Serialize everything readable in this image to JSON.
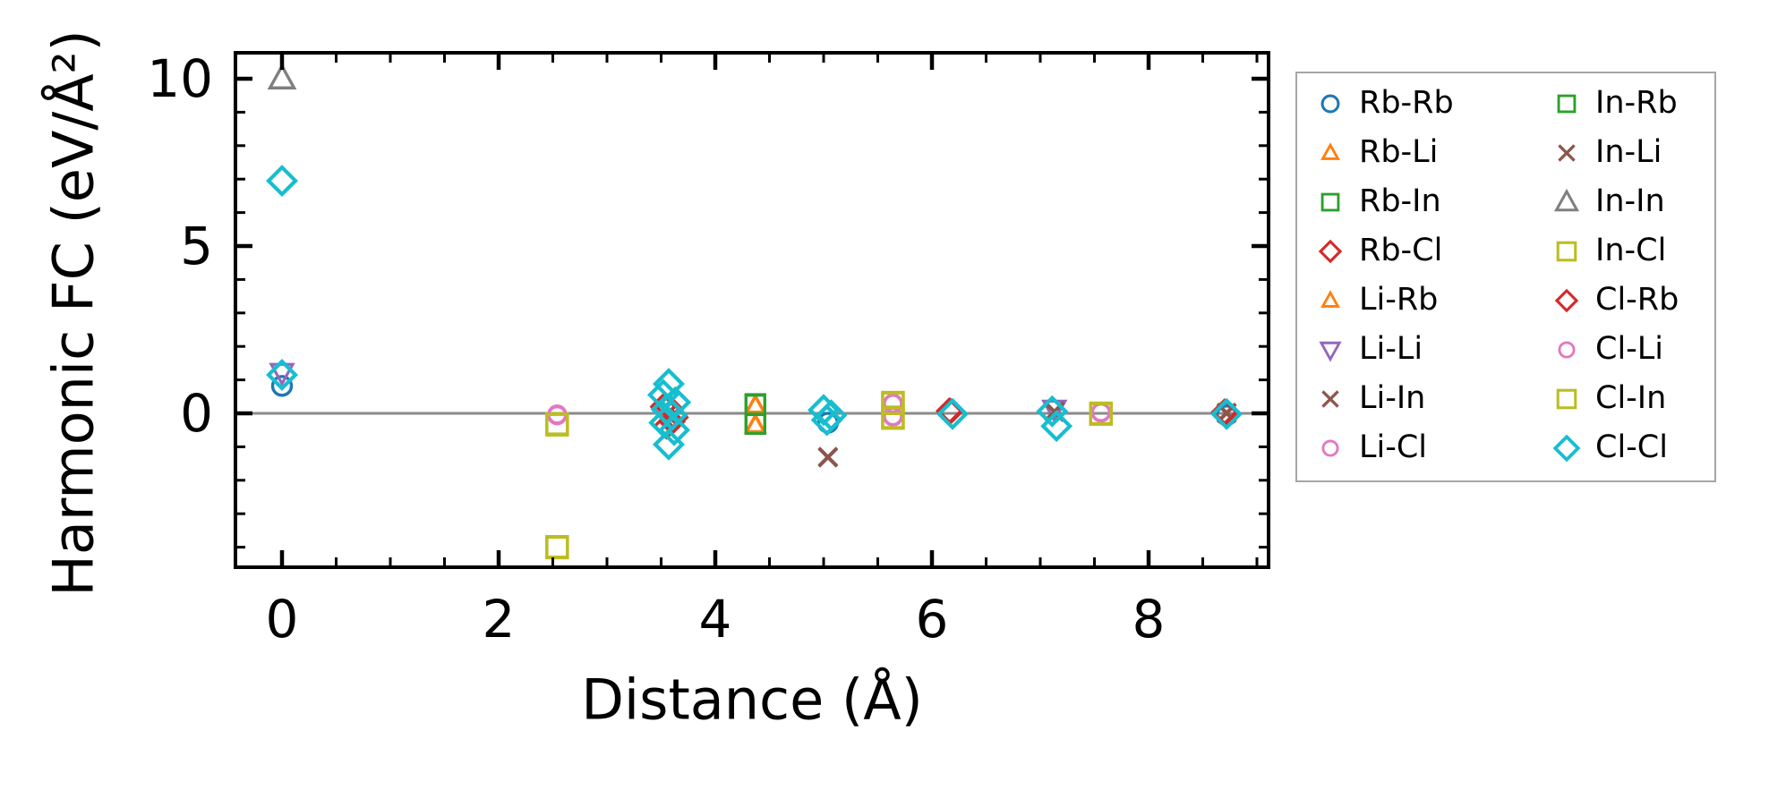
{
  "chart_data": {
    "type": "scatter",
    "title": "",
    "xlabel": "Distance (Å)",
    "ylabel": "Harmonic FC (eV/Å²)",
    "xlim": [
      -0.43,
      9.11
    ],
    "ylim": [
      -4.6,
      10.78
    ],
    "x_ticks": {
      "major": [
        0,
        2,
        4,
        6,
        8
      ],
      "labels": [
        "0",
        "2",
        "4",
        "6",
        "8"
      ],
      "minor_step": 0.5
    },
    "y_ticks": {
      "major": [
        0,
        5,
        10
      ],
      "labels": [
        "0",
        "5",
        "10"
      ],
      "minor_step": 1
    },
    "grid": false,
    "zero_line_y": 0,
    "tick_style": {
      "direction": "in",
      "sides": [
        "top",
        "bottom",
        "left",
        "right"
      ]
    },
    "legend": {
      "columns": 2,
      "location": "outside-right-top",
      "border_color": "#a6a6a6"
    },
    "colors": {
      "background": "#ffffff",
      "spine": "#000000",
      "text": "#000000",
      "zero_line": "#8a8a8a"
    },
    "series": [
      {
        "name": "Rb-Rb",
        "marker": "circle",
        "color": "#1f77b4",
        "size": 21,
        "lw": 3.4,
        "points": [
          [
            0,
            0.82
          ],
          [
            5.04,
            -0.28
          ],
          [
            8.72,
            -0.06
          ]
        ]
      },
      {
        "name": "Rb-Li",
        "marker": "triangle-up",
        "color": "#ff7f0e",
        "size": 20,
        "lw": 3.2,
        "points": [
          [
            4.37,
            0.24
          ],
          [
            4.37,
            -0.34
          ]
        ]
      },
      {
        "name": "Rb-In",
        "marker": "square",
        "color": "#2ca02c",
        "size": 21,
        "lw": 3.2,
        "points": [
          [
            4.37,
            0.28
          ],
          [
            4.37,
            -0.3
          ]
        ]
      },
      {
        "name": "Rb-Cl",
        "marker": "diamond",
        "color": "#d62728",
        "size": 26,
        "lw": 3.4,
        "points": [
          [
            3.52,
            0.2
          ],
          [
            3.63,
            -0.12
          ],
          [
            3.55,
            -0.38
          ],
          [
            6.16,
            0.07
          ],
          [
            8.7,
            0.04
          ]
        ]
      },
      {
        "name": "Li-Rb",
        "marker": "triangle-up",
        "color": "#ff7f0e",
        "size": 20,
        "lw": 3.2,
        "points": [
          [
            4.37,
            0.22
          ],
          [
            4.37,
            -0.36
          ]
        ]
      },
      {
        "name": "Li-Li",
        "marker": "triangle-down",
        "color": "#9467bd",
        "size": 24,
        "lw": 3.2,
        "points": [
          [
            0,
            1.22
          ],
          [
            7.13,
            0.12
          ]
        ]
      },
      {
        "name": "Li-In",
        "marker": "x",
        "color": "#8c564b",
        "size": 24,
        "lw": 3.6,
        "points": [
          [
            5.04,
            -1.3
          ],
          [
            7.13,
            0.04
          ],
          [
            8.72,
            0.0
          ]
        ]
      },
      {
        "name": "Li-Cl",
        "marker": "circle",
        "color": "#e377c2",
        "size": 19,
        "lw": 3.2,
        "points": [
          [
            2.54,
            -0.03
          ],
          [
            5.64,
            0.3
          ],
          [
            5.64,
            -0.1
          ],
          [
            7.56,
            0.02
          ]
        ]
      },
      {
        "name": "In-Rb",
        "marker": "square",
        "color": "#2ca02c",
        "size": 21,
        "lw": 3.2,
        "points": [
          [
            4.37,
            0.26
          ],
          [
            4.37,
            -0.32
          ]
        ]
      },
      {
        "name": "In-Li",
        "marker": "x",
        "color": "#8c564b",
        "size": 24,
        "lw": 3.6,
        "points": [
          [
            5.04,
            -1.32
          ],
          [
            7.13,
            0.06
          ],
          [
            8.72,
            0.02
          ]
        ]
      },
      {
        "name": "In-In",
        "marker": "triangle-up",
        "color": "#7f7f7f",
        "size": 27,
        "lw": 3.4,
        "points": [
          [
            0,
            10.0
          ]
        ]
      },
      {
        "name": "In-Cl",
        "marker": "square",
        "color": "#bcbd22",
        "size": 23,
        "lw": 3.4,
        "points": [
          [
            2.54,
            -0.31
          ],
          [
            2.54,
            -3.99
          ],
          [
            5.64,
            0.32
          ],
          [
            5.64,
            -0.12
          ],
          [
            7.56,
            0.0
          ]
        ]
      },
      {
        "name": "Cl-Rb",
        "marker": "diamond",
        "color": "#d62728",
        "size": 26,
        "lw": 3.4,
        "points": [
          [
            3.57,
            0.18
          ],
          [
            3.6,
            -0.25
          ],
          [
            6.17,
            0.06
          ],
          [
            8.71,
            0.02
          ]
        ]
      },
      {
        "name": "Cl-Li",
        "marker": "circle",
        "color": "#e377c2",
        "size": 19,
        "lw": 3.2,
        "points": [
          [
            2.54,
            -0.06
          ],
          [
            5.64,
            0.28
          ],
          [
            5.64,
            -0.08
          ],
          [
            7.56,
            0.04
          ]
        ]
      },
      {
        "name": "Cl-In",
        "marker": "square",
        "color": "#bcbd22",
        "size": 23,
        "lw": 3.4,
        "points": [
          [
            2.54,
            -0.34
          ],
          [
            2.54,
            -4.01
          ],
          [
            5.64,
            0.3
          ],
          [
            5.64,
            -0.14
          ],
          [
            7.56,
            -0.02
          ]
        ]
      },
      {
        "name": "Cl-Cl",
        "marker": "diamond",
        "color": "#17becf",
        "size": 30,
        "lw": 4.2,
        "points": [
          [
            0,
            6.95
          ],
          [
            0,
            1.15
          ],
          [
            3.57,
            0.88
          ],
          [
            3.52,
            0.55
          ],
          [
            3.63,
            0.33
          ],
          [
            3.55,
            0.12
          ],
          [
            3.6,
            -0.05
          ],
          [
            3.53,
            -0.28
          ],
          [
            3.62,
            -0.5
          ],
          [
            3.57,
            -0.93
          ],
          [
            5.0,
            0.1
          ],
          [
            5.07,
            -0.06
          ],
          [
            5.03,
            -0.2
          ],
          [
            6.19,
            -0.02
          ],
          [
            7.11,
            0.06
          ],
          [
            7.15,
            -0.38
          ],
          [
            8.72,
            -0.02
          ]
        ]
      }
    ]
  }
}
